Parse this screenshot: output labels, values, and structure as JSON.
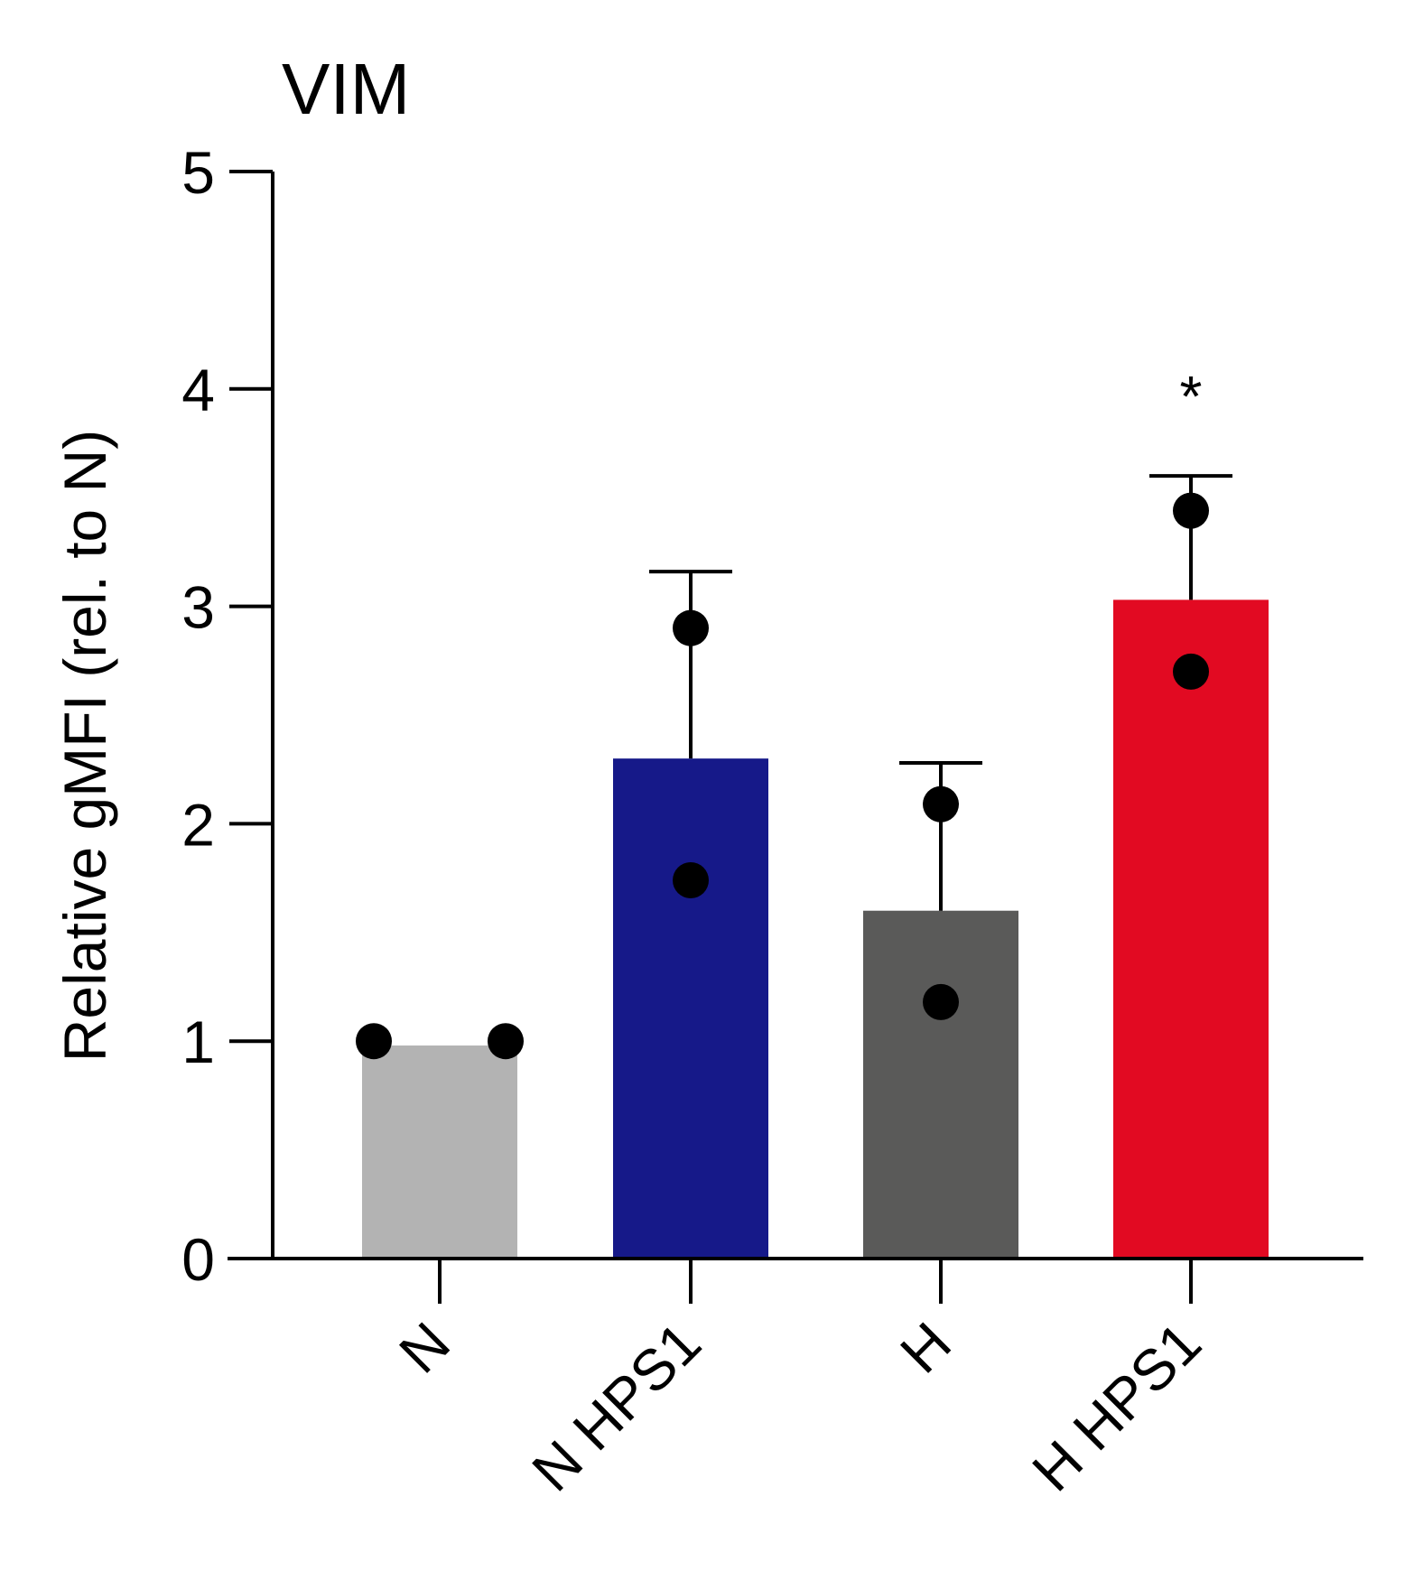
{
  "chart_data": {
    "type": "bar",
    "title": "VIM",
    "xlabel": "",
    "ylabel": "Relative gMFI (rel. to N)",
    "ylim": [
      0,
      5
    ],
    "yticks": [
      0,
      1,
      2,
      3,
      4,
      5
    ],
    "ytick_labels": [
      "0",
      "1",
      "2",
      "3",
      "4",
      "5"
    ],
    "grid": false,
    "categories": [
      "N",
      "N HPS1",
      "H",
      "H HPS1"
    ],
    "values": [
      0.98,
      2.3,
      1.6,
      3.03
    ],
    "error_upper": [
      0.98,
      3.16,
      2.28,
      3.6
    ],
    "points": [
      [
        1.0,
        1.0
      ],
      [
        2.9,
        1.74
      ],
      [
        2.09,
        1.18
      ],
      [
        3.44,
        2.7
      ]
    ],
    "significance": [
      "",
      "",
      "",
      "*"
    ],
    "colors": [
      "#b3b3b3",
      "#161989",
      "#5a5a59",
      "#e20a22"
    ]
  }
}
